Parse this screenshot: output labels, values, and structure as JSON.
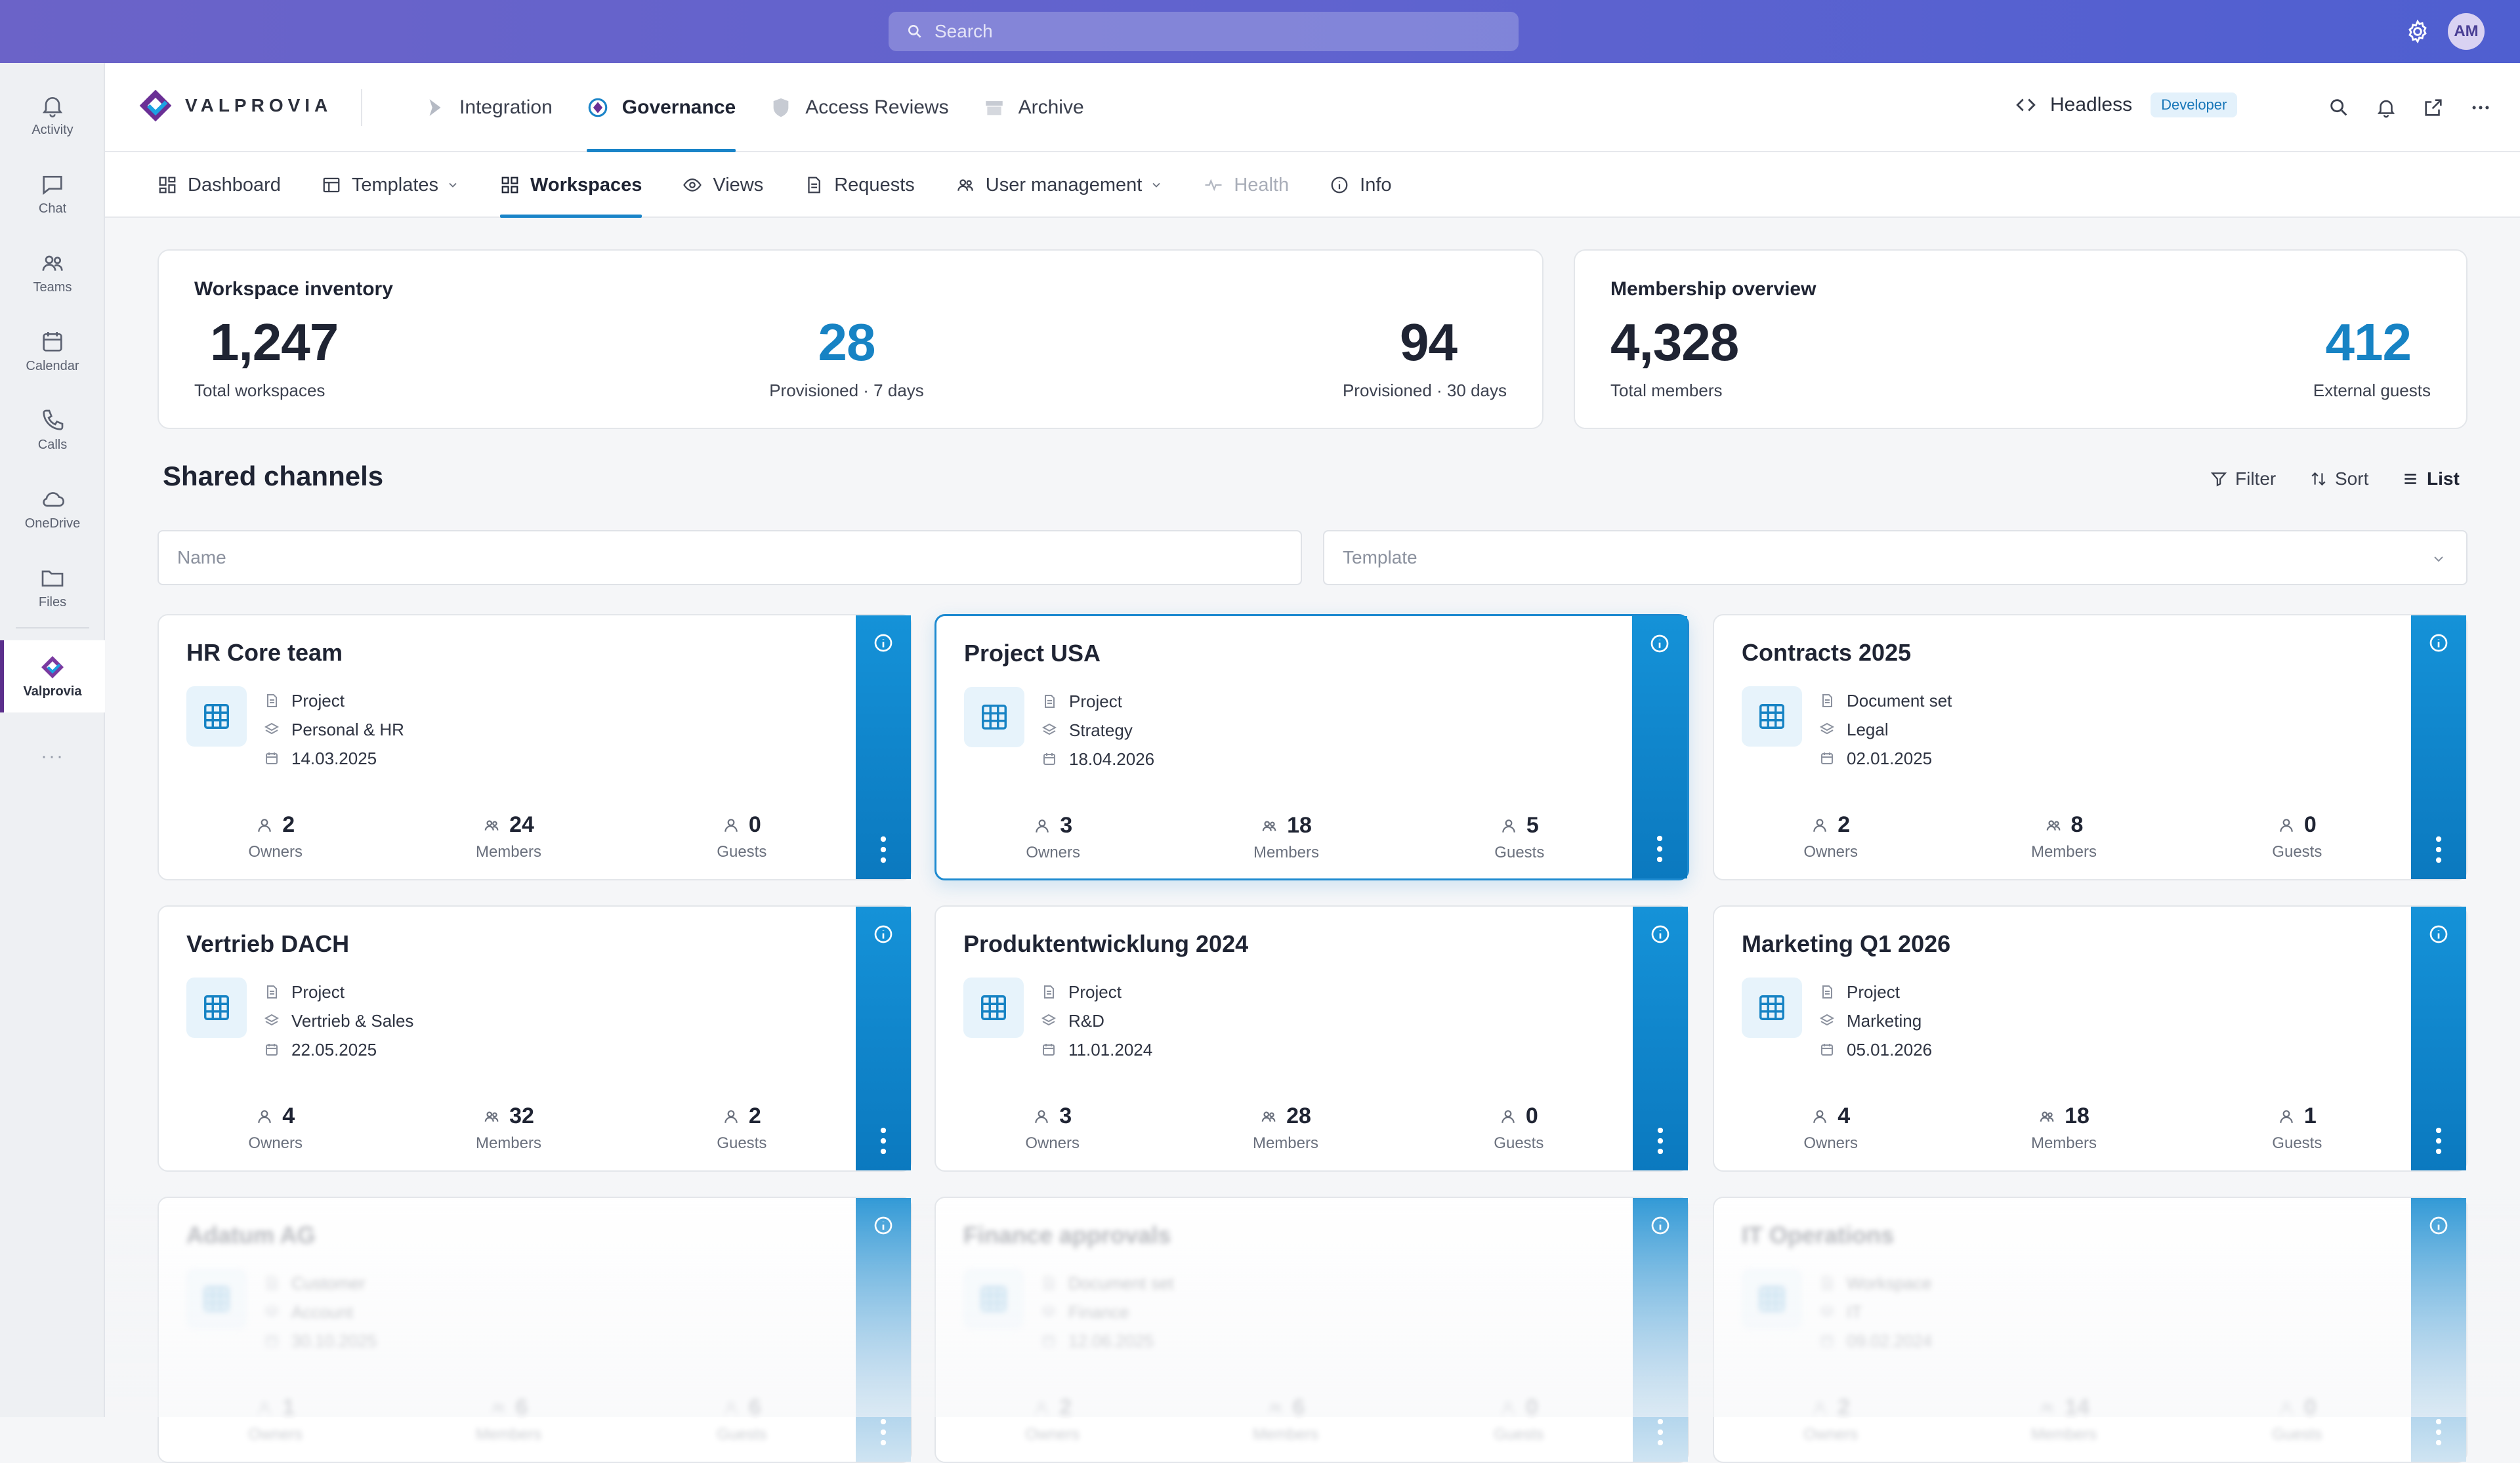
{
  "titlebar": {
    "search_placeholder": "Search",
    "avatar_initials": "AM"
  },
  "rail": {
    "items": [
      {
        "label": "Activity",
        "icon": "bell-icon"
      },
      {
        "label": "Chat",
        "icon": "chat-icon"
      },
      {
        "label": "Teams",
        "icon": "teams-icon"
      },
      {
        "label": "Calendar",
        "icon": "calendar-icon"
      },
      {
        "label": "Calls",
        "icon": "phone-icon"
      },
      {
        "label": "OneDrive",
        "icon": "cloud-icon"
      },
      {
        "label": "Files",
        "icon": "folder-icon"
      },
      {
        "label": "Valprovia",
        "icon": "valprovia-logo-icon"
      }
    ],
    "more": "···"
  },
  "header": {
    "brand": "VALPROVIA",
    "nav": [
      "Integration",
      "Governance",
      "Access Reviews",
      "Archive"
    ],
    "active_nav": "Governance",
    "headless_label": "Headless",
    "developer_badge": "Developer"
  },
  "subnav": {
    "items": [
      "Dashboard",
      "Templates",
      "Workspaces",
      "Views",
      "Requests",
      "User management",
      "Health",
      "Info"
    ],
    "active": "Workspaces",
    "disabled": "Health"
  },
  "inventory": {
    "title": "Workspace inventory",
    "total": {
      "value": "1,247",
      "caption": "Total workspaces"
    },
    "week": {
      "value": "28",
      "caption": "Provisioned · 7 days"
    },
    "month": {
      "value": "94",
      "caption": "Provisioned · 30 days"
    }
  },
  "membership": {
    "title": "Membership overview",
    "total": {
      "value": "4,328",
      "caption": "Total members"
    },
    "guests": {
      "value": "412",
      "caption": "External guests"
    }
  },
  "section": {
    "title": "Shared channels",
    "filter": "Filter",
    "sort": "Sort",
    "list": "List",
    "name_placeholder": "Name",
    "template_placeholder": "Template"
  },
  "labels": {
    "owners": "Owners",
    "members": "Members",
    "guests": "Guests"
  },
  "cards": [
    {
      "title": "HR Core team",
      "type": "Project",
      "category": "Personal & HR",
      "date": "14.03.2025",
      "owners": "2",
      "members": "24",
      "guests": "0"
    },
    {
      "title": "Project USA",
      "type": "Project",
      "category": "Strategy",
      "date": "18.04.2026",
      "owners": "3",
      "members": "18",
      "guests": "5"
    },
    {
      "title": "Contracts 2025",
      "type": "Document set",
      "category": "Legal",
      "date": "02.01.2025",
      "owners": "2",
      "members": "8",
      "guests": "0"
    },
    {
      "title": "Vertrieb DACH",
      "type": "Project",
      "category": "Vertrieb & Sales",
      "date": "22.05.2025",
      "owners": "4",
      "members": "32",
      "guests": "2"
    },
    {
      "title": "Produktentwicklung 2024",
      "type": "Project",
      "category": "R&D",
      "date": "11.01.2024",
      "owners": "3",
      "members": "28",
      "guests": "0"
    },
    {
      "title": "Marketing Q1 2026",
      "type": "Project",
      "category": "Marketing",
      "date": "05.01.2026",
      "owners": "4",
      "members": "18",
      "guests": "1"
    },
    {
      "title": "Adatum AG",
      "type": "Customer",
      "category": "Account",
      "date": "30.10.2025",
      "owners": "1",
      "members": "6",
      "guests": "6"
    },
    {
      "title": "Finance approvals",
      "type": "Document set",
      "category": "Finance",
      "date": "12.06.2025",
      "owners": "2",
      "members": "6",
      "guests": "0"
    },
    {
      "title": "IT Operations",
      "type": "Workspace",
      "category": "IT",
      "date": "09.02.2024",
      "owners": "2",
      "members": "14",
      "guests": "0"
    }
  ],
  "selected_card": "Project USA",
  "colors": {
    "accent": "#1783c4",
    "titlebar": "#5f63cf",
    "brand_purple": "#5b2f8c"
  }
}
